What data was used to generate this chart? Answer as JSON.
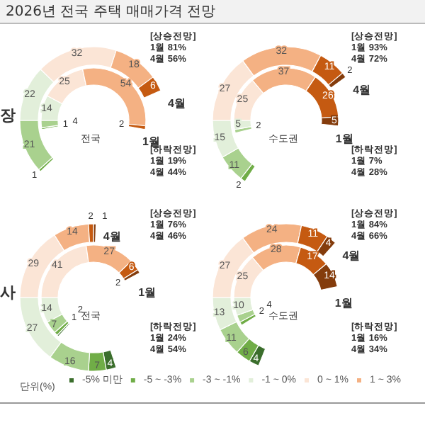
{
  "chart_data": [
    {
      "type": "donut",
      "title": "전국",
      "subtitle": "2026년 전국 주택 매매가격 전망",
      "categories": [
        null,
        null,
        null,
        null,
        null,
        null
      ],
      "colors": [
        "#70ad47",
        "#a9d18e",
        "#e2efda",
        "#fbe5d6",
        "#f4b183",
        "#c55a11"
      ],
      "series": [
        {
          "name": "4월",
          "values": [
            1,
            21,
            22,
            32,
            18,
            6
          ]
        },
        {
          "name": "1월",
          "values": [
            1,
            4,
            14,
            25,
            54,
            2
          ]
        }
      ],
      "data_labels": true,
      "annotations": [
        "[상승전망]\n1월 81%\n4월 56%",
        "[하락전망]\n1월 19%\n4월 44%",
        "장"
      ]
    },
    {
      "type": "donut",
      "title": "수도권",
      "categories": [
        null,
        null,
        null,
        null,
        null,
        null,
        null
      ],
      "colors": [
        "#70ad47",
        "#a9d18e",
        "#e2efda",
        "#fbe5d6",
        "#f4b183",
        "#c55a11",
        "#843c0c"
      ],
      "series": [
        {
          "name": "4월",
          "values": [
            2,
            11,
            15,
            27,
            32,
            11,
            2
          ]
        },
        {
          "name": "1월",
          "values": [
            null,
            2,
            5,
            25,
            37,
            26,
            5
          ]
        }
      ],
      "data_labels": true,
      "annotations": [
        "[상승전망]\n1월 93%\n4월 72%",
        "[하락전망]\n1월 7%\n4월 28%"
      ]
    },
    {
      "type": "donut",
      "title": "전국",
      "categories": [
        "-5% 미만",
        "-5 ~ -3%",
        "-3 ~ -1%",
        "-1 ~ 0%",
        "0 ~ 1%",
        "1 ~ 3%",
        null,
        null
      ],
      "colors": [
        "#3b6e2c",
        "#70ad47",
        "#a9d18e",
        "#e2efda",
        "#fbe5d6",
        "#f4b183",
        "#c55a11",
        "#843c0c"
      ],
      "series": [
        {
          "name": "4월",
          "values": [
            4,
            7,
            16,
            27,
            29,
            14,
            2,
            1
          ]
        },
        {
          "name": "1월",
          "values": [
            1,
            2,
            7,
            14,
            41,
            27,
            6,
            2
          ]
        }
      ],
      "data_labels": true,
      "legend": "bottom",
      "legend_title": "단위(%)",
      "annotations": [
        "[상승전망]\n1월 76%\n4월 46%",
        "[하락전망]\n1월 24%\n4월 54%",
        "사"
      ]
    },
    {
      "type": "donut",
      "title": "수도권",
      "categories": [
        null,
        null,
        null,
        null,
        null,
        null,
        null,
        null
      ],
      "colors": [
        "#3b6e2c",
        "#70ad47",
        "#a9d18e",
        "#e2efda",
        "#fbe5d6",
        "#f4b183",
        "#c55a11",
        "#843c0c"
      ],
      "series": [
        {
          "name": "4월",
          "values": [
            4,
            6,
            11,
            13,
            27,
            24,
            11,
            4
          ]
        },
        {
          "name": "1월",
          "values": [
            null,
            2,
            4,
            10,
            25,
            28,
            17,
            14
          ]
        }
      ],
      "data_labels": true,
      "annotations": [
        "[상승전망]\n1월 84%\n4월 66%",
        "[하락전망]\n1월 16%\n4월 34%"
      ]
    }
  ]
}
